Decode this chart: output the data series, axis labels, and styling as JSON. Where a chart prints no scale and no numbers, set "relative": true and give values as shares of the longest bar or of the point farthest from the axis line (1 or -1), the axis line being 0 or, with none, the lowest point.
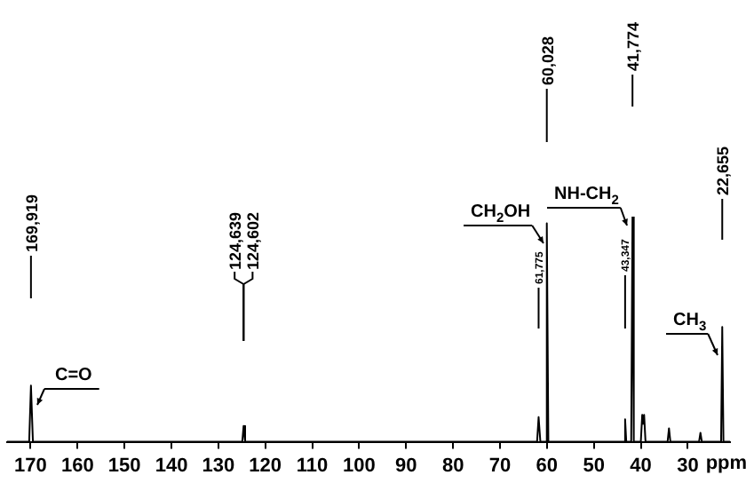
{
  "chart_data": {
    "type": "line",
    "relative": true,
    "legend": false,
    "grid": false,
    "marker": "none",
    "tick_labels": "x",
    "xlabel": "ppm",
    "xlim": [
      175,
      21
    ],
    "xticks": [
      170,
      160,
      150,
      140,
      130,
      120,
      110,
      100,
      90,
      80,
      70,
      60,
      50,
      40,
      30
    ],
    "series": [
      {
        "color": "#000000",
        "x": [
          175,
          170.3,
          169.919,
          169.5,
          124.9,
          124.62,
          124.3,
          62.1,
          61.775,
          61.4,
          60.3,
          60.028,
          59.7,
          43.6,
          43.347,
          43.1,
          42.05,
          41.774,
          41.5,
          40.0,
          39.7,
          39.5,
          39.3,
          39.0,
          34.3,
          34.0,
          33.7,
          27.6,
          27.3,
          27.0,
          22.9,
          22.655,
          22.4,
          21
        ],
        "values": [
          0,
          0,
          0.25,
          0,
          0,
          0.07,
          0,
          0,
          0.11,
          0,
          0,
          0.97,
          0,
          0,
          0.1,
          0,
          0,
          1,
          0,
          0,
          0.12,
          0.08,
          0.12,
          0,
          0,
          0.06,
          0,
          0,
          0.04,
          0,
          0,
          0.51,
          0,
          0
        ]
      }
    ],
    "annotations": [
      {
        "text": "169,919",
        "x": 169.919
      },
      {
        "text": "124,639",
        "x": 124.639
      },
      {
        "text": "124,602",
        "x": 124.602
      },
      {
        "text": "60,028",
        "x": 60.028
      },
      {
        "text": "41,774",
        "x": 41.774
      },
      {
        "text": "22,655",
        "x": 22.655
      },
      {
        "text": "61,775",
        "x": 61.775
      },
      {
        "text": "43,347",
        "x": 43.347
      },
      "C=O",
      "CH$_{2}$OH",
      "NH-CH$_{2}$",
      "CH$_{3}$"
    ]
  }
}
